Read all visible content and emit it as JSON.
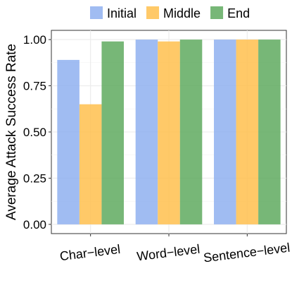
{
  "chart_data": {
    "type": "bar",
    "categories": [
      "Char−level",
      "Word−level",
      "Sentence−level"
    ],
    "series": [
      {
        "name": "Initial",
        "color": "#8FB0F0",
        "values": [
          0.89,
          1.0,
          1.0
        ]
      },
      {
        "name": "Middle",
        "color": "#FFC04D",
        "values": [
          0.65,
          0.99,
          1.0
        ]
      },
      {
        "name": "End",
        "color": "#5FAA5F",
        "values": [
          0.99,
          1.0,
          1.0
        ]
      }
    ],
    "ylabel": "Average Attack Success Rate",
    "xlabel": "",
    "ylim": [
      -0.05,
      1.05
    ],
    "yticks": [
      "0.00",
      "0.25",
      "0.50",
      "0.75",
      "1.00"
    ],
    "ytick_values": [
      0,
      0.25,
      0.5,
      0.75,
      1.0
    ],
    "grid": true,
    "legend_position": "top"
  }
}
